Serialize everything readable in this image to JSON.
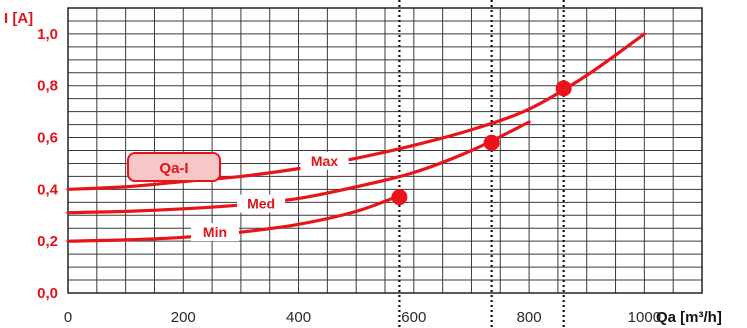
{
  "chart_data": {
    "type": "line",
    "title": "",
    "ylabel": "I [A]",
    "xlabel": "Qa [m³/h]",
    "xlim": [
      0,
      1100
    ],
    "ylim": [
      0,
      1.1
    ],
    "x_ticks": [
      0,
      200,
      400,
      600,
      800,
      1000
    ],
    "x_tick_labels": [
      "0",
      "200",
      "400",
      "600",
      "800",
      "1000"
    ],
    "y_ticks": [
      0,
      0.2,
      0.4,
      0.6,
      0.8,
      1.0
    ],
    "y_tick_labels": [
      "0,0",
      "0,2",
      "0,4",
      "0,6",
      "0,8",
      "1,0"
    ],
    "grid": true,
    "legend_box_label": "Qa-I",
    "series": [
      {
        "name": "Max",
        "x": [
          0,
          100,
          200,
          300,
          400,
          500,
          600,
          700,
          800,
          900,
          1000
        ],
        "y": [
          0.4,
          0.41,
          0.43,
          0.45,
          0.48,
          0.52,
          0.57,
          0.63,
          0.71,
          0.84,
          1.0
        ]
      },
      {
        "name": "Med",
        "x": [
          0,
          100,
          200,
          300,
          400,
          500,
          600,
          700,
          800
        ],
        "y": [
          0.31,
          0.315,
          0.325,
          0.34,
          0.365,
          0.41,
          0.465,
          0.55,
          0.66
        ]
      },
      {
        "name": "Min",
        "x": [
          0,
          100,
          200,
          300,
          400,
          500,
          580
        ],
        "y": [
          0.2,
          0.205,
          0.215,
          0.235,
          0.265,
          0.315,
          0.38
        ]
      }
    ],
    "label_positions": [
      {
        "series": "Max",
        "x": 445,
        "y": 0.51
      },
      {
        "series": "Med",
        "x": 335,
        "y": 0.345
      },
      {
        "series": "Min",
        "x": 255,
        "y": 0.235
      }
    ],
    "operating_points": [
      {
        "x": 575,
        "y": 0.37
      },
      {
        "x": 735,
        "y": 0.58
      },
      {
        "x": 860,
        "y": 0.79
      }
    ],
    "vertical_dotted_lines_x": [
      575,
      735,
      860
    ],
    "colors": {
      "curve": "#e8141a",
      "label_text": "#e0141a",
      "grid": "#3a3a3a",
      "legend_fill": "#f7c6c6",
      "legend_stroke": "#e8141a",
      "xaxis_text": "#2a2a2a",
      "title_text": "#111111"
    }
  }
}
